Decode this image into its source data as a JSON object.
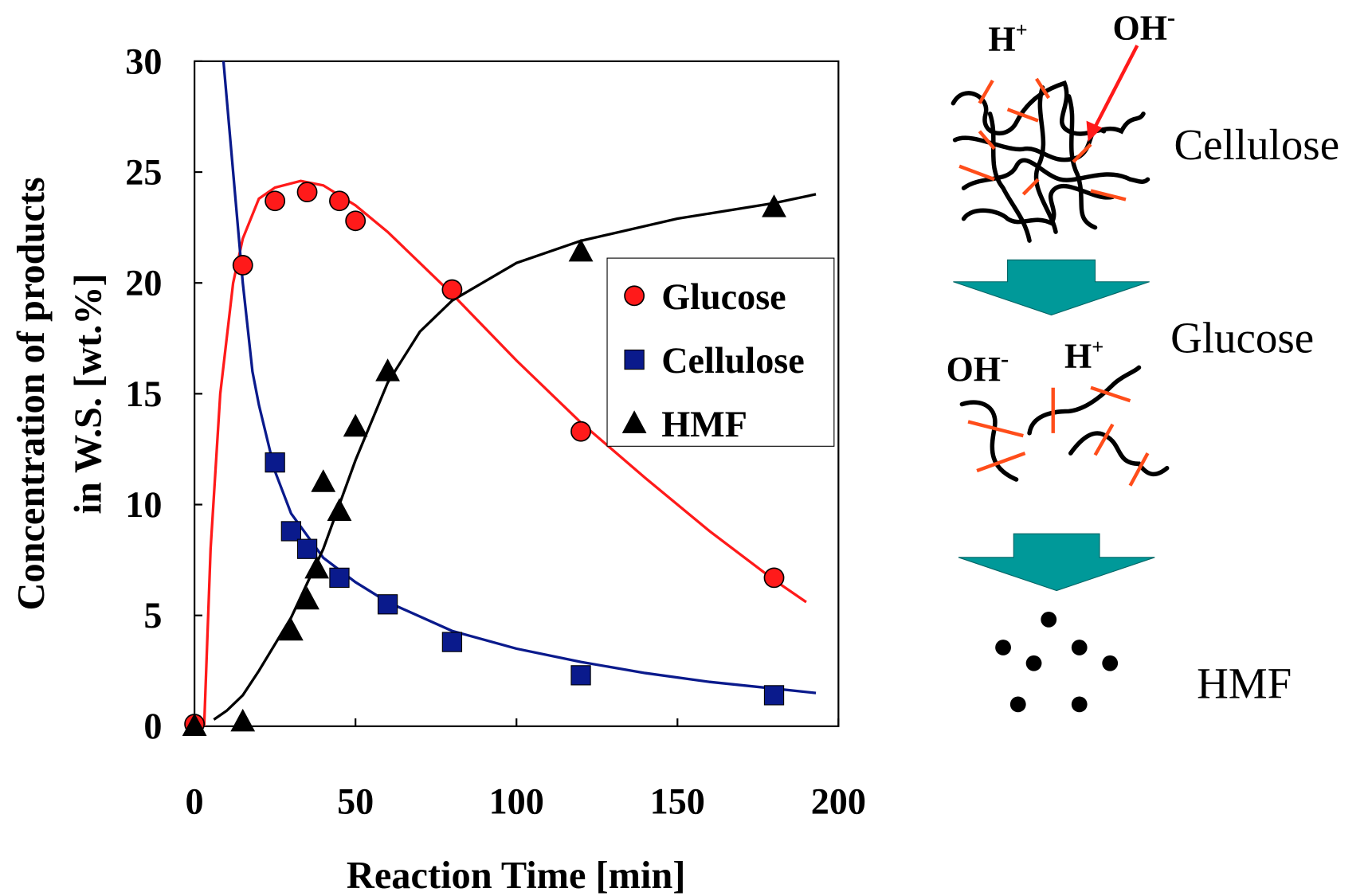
{
  "chart_data": {
    "type": "scatter",
    "xlabel": "Reaction Time [min]",
    "ylabel": [
      "Concentration of products",
      "in W.S. [wt.%]"
    ],
    "xlim": [
      0,
      200
    ],
    "xticks": [
      0,
      50,
      100,
      150,
      200
    ],
    "ylim": [
      0,
      30
    ],
    "yticks": [
      0,
      5,
      10,
      15,
      20,
      25,
      30
    ],
    "series": [
      {
        "name": "Glucose",
        "color": "#ff1a1a",
        "marker": "circle",
        "x": [
          0,
          15,
          25,
          35,
          45,
          50,
          80,
          120,
          180
        ],
        "values": [
          0.1,
          20.8,
          23.7,
          24.1,
          23.7,
          22.8,
          19.7,
          13.3,
          6.7
        ]
      },
      {
        "name": "Cellulose",
        "color": "#0a1a8c",
        "marker": "square",
        "x": [
          25,
          30,
          35,
          45,
          60,
          80,
          120,
          180
        ],
        "values": [
          11.9,
          8.8,
          8.0,
          6.7,
          5.5,
          3.8,
          2.3,
          1.4
        ]
      },
      {
        "name": "HMF",
        "color": "#000000",
        "marker": "triangle",
        "x": [
          0,
          15,
          30,
          35,
          38,
          40,
          45,
          50,
          60,
          120,
          180
        ],
        "values": [
          0,
          0.2,
          4.3,
          5.7,
          7.1,
          11.0,
          9.7,
          13.5,
          16.0,
          21.4,
          23.4
        ]
      }
    ],
    "fits": [
      {
        "color": "#ff1a1a",
        "x": [
          3,
          5,
          8,
          12,
          15,
          20,
          25,
          33,
          40,
          50,
          60,
          80,
          100,
          120,
          140,
          160,
          180,
          190
        ],
        "values": [
          0,
          8,
          15,
          20,
          22,
          23.8,
          24.3,
          24.6,
          24.4,
          23.5,
          22.3,
          19.5,
          16.5,
          13.7,
          11.2,
          8.8,
          6.6,
          5.6
        ]
      },
      {
        "color": "#0a1a8c",
        "x": [
          9,
          12,
          15,
          18,
          20,
          25,
          30,
          40,
          50,
          60,
          80,
          100,
          120,
          140,
          160,
          180,
          193
        ],
        "values": [
          30,
          25,
          20,
          16,
          14.5,
          11.5,
          9.6,
          7.6,
          6.5,
          5.6,
          4.3,
          3.5,
          2.9,
          2.4,
          2.0,
          1.7,
          1.5
        ]
      },
      {
        "color": "#000000",
        "x": [
          6,
          10,
          15,
          20,
          30,
          40,
          50,
          60,
          70,
          80,
          100,
          120,
          150,
          180,
          193
        ],
        "values": [
          0.3,
          0.7,
          1.4,
          2.5,
          4.9,
          8,
          12,
          15.5,
          17.8,
          19.2,
          20.9,
          21.9,
          22.9,
          23.6,
          24
        ]
      }
    ]
  },
  "diagram": {
    "h_plus_1": {
      "base": "H",
      "sup": "+"
    },
    "oh_minus_1": {
      "base": "OH",
      "sup": "-"
    },
    "oh_minus_2": {
      "base": "OH",
      "sup": "-"
    },
    "h_plus_2": {
      "base": "H",
      "sup": "+"
    },
    "cellulose": "Cellulose",
    "glucose": "Glucose",
    "hmf": "HMF"
  }
}
